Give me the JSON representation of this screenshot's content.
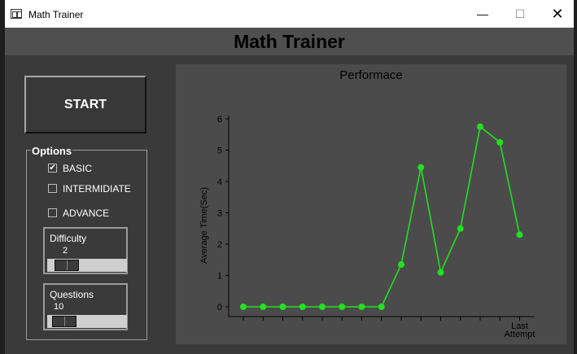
{
  "window": {
    "title": "Math Trainer",
    "minimize_symbol": "—",
    "maximize_symbol": "☐",
    "close_symbol": "✕"
  },
  "header": {
    "title": "Math Trainer"
  },
  "start_button": {
    "label": "START"
  },
  "options": {
    "legend": "Options",
    "levels": [
      {
        "label": "BASIC",
        "checked": true
      },
      {
        "label": "INTERMIDIATE",
        "checked": false
      },
      {
        "label": "ADVANCE",
        "checked": false
      }
    ],
    "check_mark": "✔"
  },
  "difficulty": {
    "label": "Difficulty",
    "value": "2",
    "fraction": 0.1
  },
  "questions": {
    "label": "Questions",
    "value": "10",
    "fraction": 0.05
  },
  "accent_color": "#22e022",
  "chart_data": {
    "type": "line",
    "title": "Performace",
    "ylabel": "Average Time(Sec)",
    "xlabel": "",
    "ylim": [
      0,
      6
    ],
    "yticks": [
      0,
      1,
      2,
      3,
      4,
      5,
      6
    ],
    "x_count": 15,
    "x_last_label": [
      "Last",
      "Attempt"
    ],
    "series": [
      {
        "values": [
          0,
          0,
          0,
          0,
          0,
          0,
          0,
          0,
          1.35,
          4.45,
          1.1,
          2.5,
          5.75,
          5.25,
          2.3
        ]
      }
    ],
    "grid": false
  }
}
